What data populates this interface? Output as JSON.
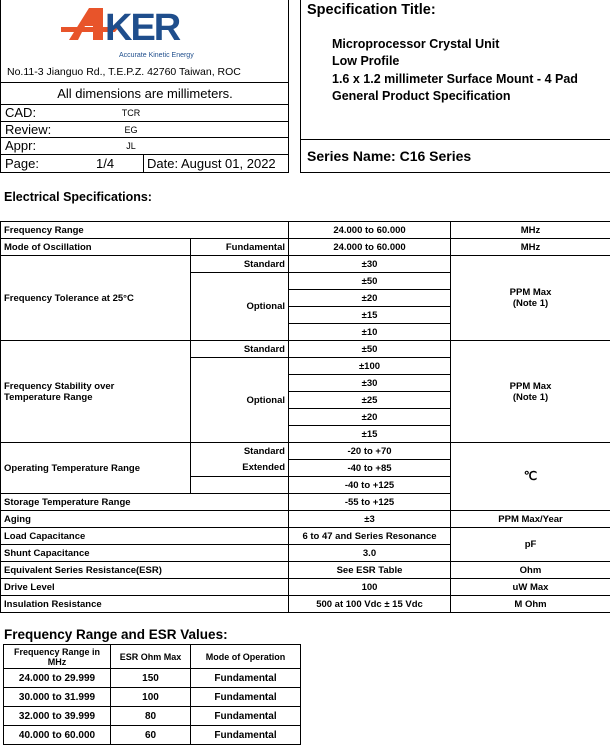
{
  "header": {
    "logo_text": "AKER",
    "logo_tagline": "Accurate Kinetic Energy",
    "address": "No.11-3 Jianguo Rd., T.E.P.Z. 42760 Taiwan, ROC",
    "dimensions_note": "All dimensions are millimeters.",
    "cad_label": "CAD:",
    "cad_value": "TCR",
    "review_label": "Review:",
    "review_value": "EG",
    "appr_label": "Appr:",
    "appr_value": "JL",
    "page_label": "Page:",
    "page_value": "1/4",
    "date": "Date: August 01, 2022",
    "spec_title_label": "Specification Title:",
    "title_lines": [
      "Microprocessor Crystal Unit",
      "Low Profile",
      "1.6 x 1.2 millimeter Surface Mount - 4 Pad",
      "General Product Specification"
    ],
    "series_name": "Series Name: C16 Series"
  },
  "colors": {
    "logo_orange": "#e8542a",
    "logo_blue": "#1f4e8c"
  },
  "electrical": {
    "heading": "Electrical Specifications:",
    "freq_range": {
      "label": "Frequency Range",
      "value": "24.000 to 60.000",
      "unit": "MHz"
    },
    "mode": {
      "label": "Mode of Oscillation",
      "sub": "Fundamental",
      "value": "24.000 to 60.000",
      "unit": "MHz"
    },
    "tolerance": {
      "label": "Frequency Tolerance at 25°C",
      "standard": "Standard",
      "optional": "Optional",
      "values": [
        "±30",
        "±50",
        "±20",
        "±15",
        "±10"
      ],
      "unit": "PPM Max",
      "note": "(Note 1)"
    },
    "stability": {
      "label1": "Frequency Stability over",
      "label2": "Temperature Range",
      "standard": "Standard",
      "optional": "Optional",
      "values": [
        "±50",
        "±100",
        "±30",
        "±25",
        "±20",
        "±15"
      ],
      "unit": "PPM Max",
      "note": "(Note 1)"
    },
    "op_temp": {
      "label": "Operating Temperature Range",
      "standard": "Standard",
      "extended": "Extended",
      "values": [
        "-20 to +70",
        "-40 to +85",
        "-40 to +125"
      ],
      "unit": "℃"
    },
    "storage": {
      "label": "Storage Temperature Range",
      "value": "-55 to +125"
    },
    "aging": {
      "label": "Aging",
      "value": "±3",
      "unit": "PPM Max/Year"
    },
    "load": {
      "label": "Load Capacitance",
      "value": "6 to 47 and Series Resonance",
      "unit": "pF"
    },
    "shunt": {
      "label": "Shunt Capacitance",
      "value": "3.0"
    },
    "esr": {
      "label": "Equivalent Series Resistance(ESR)",
      "value": "See ESR Table",
      "unit": "Ohm"
    },
    "drive": {
      "label": "Drive Level",
      "value": "100",
      "unit": "uW Max"
    },
    "insulation": {
      "label": "Insulation Resistance",
      "value": "500 at 100 Vdc ± 15 Vdc",
      "unit": "M Ohm"
    }
  },
  "esr_table": {
    "heading": "Frequency Range and ESR Values:",
    "columns": [
      "Frequency Range in MHz",
      "ESR Ohm Max",
      "Mode of Operation"
    ],
    "rows": [
      [
        "24.000 to 29.999",
        "150",
        "Fundamental"
      ],
      [
        "30.000 to 31.999",
        "100",
        "Fundamental"
      ],
      [
        "32.000 to 39.999",
        "80",
        "Fundamental"
      ],
      [
        "40.000 to 60.000",
        "60",
        "Fundamental"
      ]
    ]
  }
}
